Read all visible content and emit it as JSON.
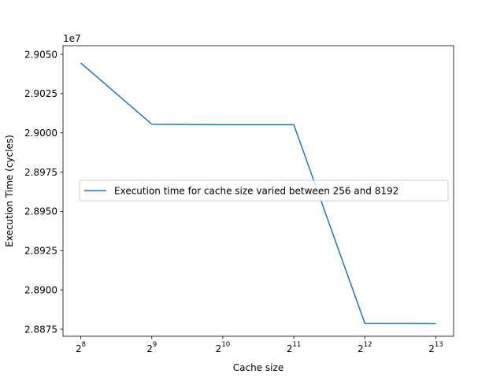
{
  "chart_data": {
    "type": "line",
    "xlabel": "Cache size",
    "ylabel": "Execution Time (cycles)",
    "y_offset_text": "1e7",
    "x_scale": "log2",
    "x_ticks": [
      256,
      512,
      1024,
      2048,
      4096,
      8192
    ],
    "x_tick_bases": [
      "2",
      "2",
      "2",
      "2",
      "2",
      "2"
    ],
    "x_tick_exponents": [
      "8",
      "9",
      "10",
      "11",
      "12",
      "13"
    ],
    "y_ticks": [
      2.8875,
      2.89,
      2.8925,
      2.895,
      2.8975,
      2.9,
      2.9025,
      2.905
    ],
    "y_tick_labels": [
      "2.8875",
      "2.8900",
      "2.8925",
      "2.8950",
      "2.8975",
      "2.9000",
      "2.9025",
      "2.9050"
    ],
    "ylim": [
      2.88705,
      2.90555
    ],
    "series": [
      {
        "name": "Execution time for cache size varied between 256 and 8192",
        "color": "#1f77b4",
        "x": [
          256,
          512,
          1024,
          2048,
          4096,
          8192
        ],
        "y": [
          2.90445,
          2.90055,
          2.90052,
          2.90052,
          2.88788,
          2.88787
        ]
      }
    ],
    "legend_position": "center-left",
    "grid": false
  }
}
